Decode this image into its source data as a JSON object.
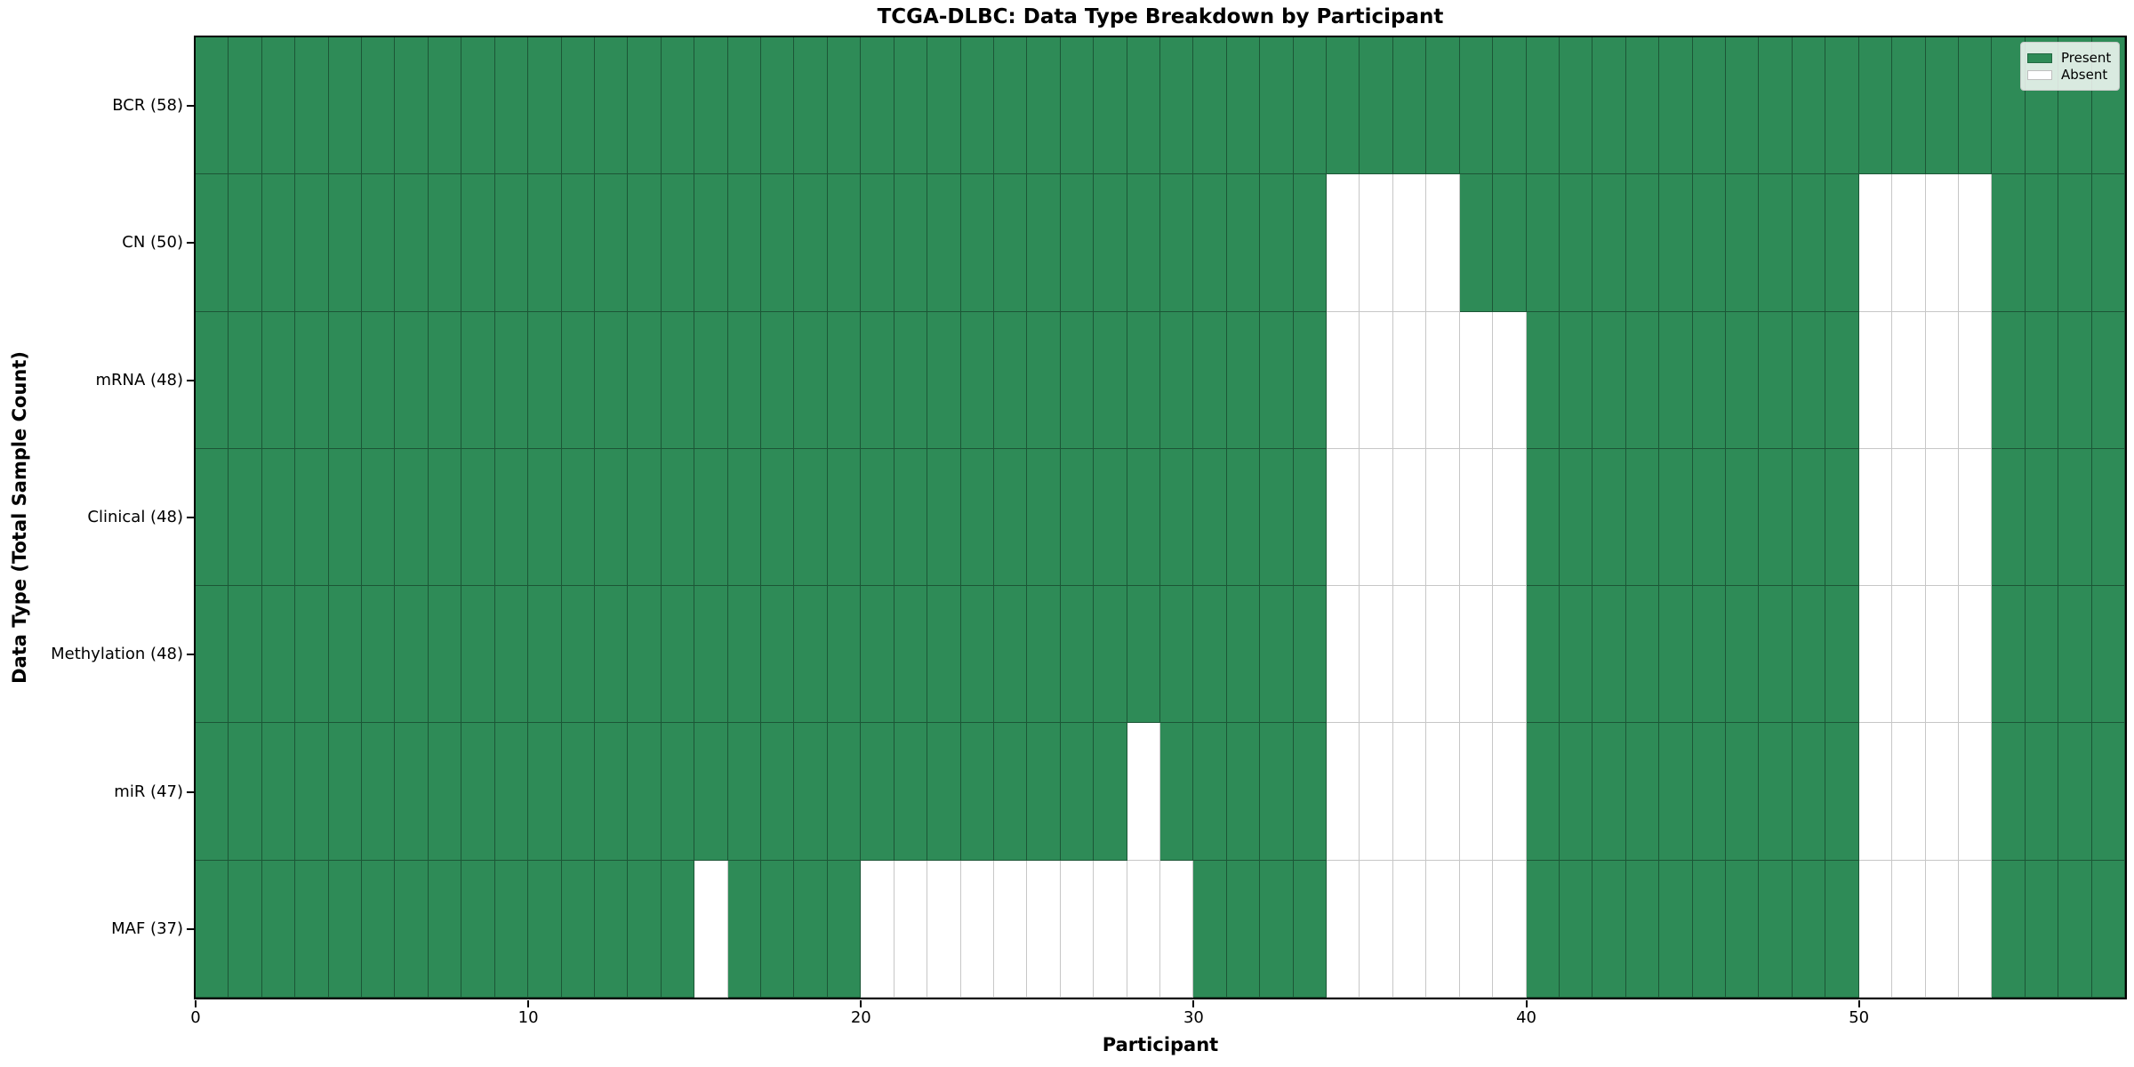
{
  "chart_data": {
    "type": "heatmap",
    "title": "TCGA-DLBC: Data Type Breakdown by Participant",
    "xlabel": "Participant",
    "ylabel": "Data Type (Total Sample Count)",
    "n_participants": 58,
    "x_ticks": [
      0,
      10,
      20,
      30,
      40,
      50
    ],
    "grid": true,
    "legend_position": "upper right",
    "legend": [
      {
        "label": "Present",
        "color": "#2e8b57"
      },
      {
        "label": "Absent",
        "color": "#ffffff"
      }
    ],
    "colors": {
      "present": "#2e8b57",
      "absent": "#ffffff"
    },
    "rows": [
      {
        "label": "BCR (58)",
        "data_type": "BCR",
        "total_samples": 58,
        "absent_participants": []
      },
      {
        "label": "CN (50)",
        "data_type": "CN",
        "total_samples": 50,
        "absent_participants": [
          34,
          35,
          36,
          37,
          50,
          51,
          52,
          53
        ]
      },
      {
        "label": "mRNA (48)",
        "data_type": "mRNA",
        "total_samples": 48,
        "absent_participants": [
          34,
          35,
          36,
          37,
          38,
          39,
          50,
          51,
          52,
          53
        ]
      },
      {
        "label": "Clinical (48)",
        "data_type": "Clinical",
        "total_samples": 48,
        "absent_participants": [
          34,
          35,
          36,
          37,
          38,
          39,
          50,
          51,
          52,
          53
        ]
      },
      {
        "label": "Methylation (48)",
        "data_type": "Methylation",
        "total_samples": 48,
        "absent_participants": [
          34,
          35,
          36,
          37,
          38,
          39,
          50,
          51,
          52,
          53
        ]
      },
      {
        "label": "miR (47)",
        "data_type": "miR",
        "total_samples": 47,
        "absent_participants": [
          28,
          34,
          35,
          36,
          37,
          38,
          39,
          50,
          51,
          52,
          53
        ]
      },
      {
        "label": "MAF (37)",
        "data_type": "MAF",
        "total_samples": 37,
        "absent_participants": [
          15,
          20,
          21,
          22,
          23,
          24,
          25,
          26,
          27,
          28,
          29,
          34,
          35,
          36,
          37,
          38,
          39,
          50,
          51,
          52,
          53
        ]
      }
    ]
  }
}
